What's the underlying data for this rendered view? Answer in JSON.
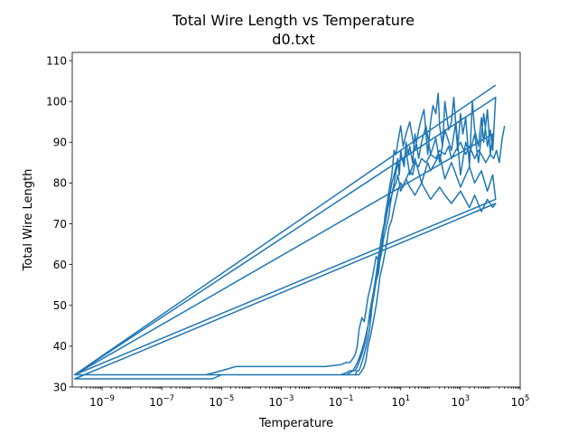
{
  "chart_data": {
    "type": "line",
    "title": "Total Wire Length vs Temperature",
    "subtitle": "d0.txt",
    "xlabel": "Temperature",
    "ylabel": "Total Wire Length",
    "xscale": "log",
    "xlim": [
      1e-10,
      100000
    ],
    "ylim": [
      30,
      112
    ],
    "xticks": [
      {
        "value": 1e-09,
        "base": "10",
        "exp": "−9"
      },
      {
        "value": 1e-07,
        "base": "10",
        "exp": "−7"
      },
      {
        "value": 1e-05,
        "base": "10",
        "exp": "−5"
      },
      {
        "value": 0.001,
        "base": "10",
        "exp": "−3"
      },
      {
        "value": 0.1,
        "base": "10",
        "exp": "−1"
      },
      {
        "value": 10,
        "base": "10",
        "exp": "1"
      },
      {
        "value": 1000,
        "base": "10",
        "exp": "3"
      },
      {
        "value": 100000,
        "base": "10",
        "exp": "5"
      }
    ],
    "yticks": [
      30,
      40,
      50,
      60,
      70,
      80,
      90,
      100,
      110
    ],
    "grid": false,
    "series": [
      {
        "color": "#1f77b4",
        "x": [
          15000,
          1.2e-10,
          3e-10,
          1e-09,
          1e-08,
          3e-08,
          1e-07,
          3e-07,
          1e-06,
          3e-06,
          1e-05,
          3e-05,
          0.0001,
          0.0003,
          0.001,
          0.003,
          0.01,
          0.03,
          0.1,
          0.15,
          0.2,
          0.25,
          0.3,
          0.35,
          0.4,
          0.5,
          0.6,
          0.7,
          0.8,
          1.0,
          1.2,
          1.5,
          1.8,
          2.2,
          2.6,
          3.0,
          3.5,
          4.0,
          4.5,
          5.0,
          5.5,
          6.0,
          7.0,
          8.0,
          9.0,
          10,
          12,
          15,
          20,
          25,
          30,
          40,
          50,
          60,
          70,
          80,
          100,
          120,
          150,
          180,
          200,
          250,
          300,
          400,
          500,
          600,
          800,
          1000,
          1200,
          1500,
          2000,
          2500,
          3000,
          4000,
          5000,
          6000,
          8000,
          10000,
          12000,
          1.2e-10,
          3e-10,
          1e-09,
          1e-08,
          1e-07,
          1e-06,
          1e-05,
          0.0001,
          0.001,
          0.01,
          0.05,
          0.1,
          0.15,
          0.2,
          0.25,
          0.3,
          0.35,
          0.4,
          0.45,
          0.5,
          0.55,
          0.6,
          0.7,
          0.8,
          0.9,
          1.0,
          1.1,
          1.3,
          1.5,
          1.8,
          2.0,
          2.3,
          2.6,
          3.0,
          3.5,
          4.0,
          4.5,
          5.0,
          6.0,
          7.0,
          8.0,
          9.0,
          10,
          11,
          13,
          15,
          18,
          20,
          25,
          30,
          40,
          50,
          70,
          100,
          150,
          200,
          300,
          500,
          700,
          1000,
          1500,
          2000,
          3000,
          4000,
          6000,
          8000,
          10000,
          12000,
          15000,
          1.2e-10,
          1e-09,
          1e-08,
          1e-07,
          1e-06,
          1e-05,
          0.0001,
          0.001,
          0.01,
          0.05,
          0.1,
          0.15,
          0.2,
          0.25,
          0.3,
          0.35,
          0.4,
          0.5,
          0.6,
          0.7,
          0.8,
          0.9,
          1.0,
          1.2,
          1.4,
          1.6,
          1.8,
          2.0,
          2.3,
          2.6,
          3.0,
          3.5,
          4.0,
          4.5,
          5.0,
          6.0,
          7.0,
          8.0,
          9.0,
          10,
          12,
          15,
          20,
          30,
          50,
          80,
          100,
          200,
          300,
          500,
          1000,
          2000,
          3000,
          5000,
          8000,
          12000,
          15000,
          1.2e-10,
          1e-09,
          1e-08,
          1e-07,
          1e-06,
          1e-05,
          0.0001,
          0.001,
          0.01,
          0.1,
          0.15,
          0.2,
          0.25,
          0.3,
          0.35,
          0.4,
          0.5,
          0.6,
          0.7,
          0.8,
          0.9,
          1.0,
          1.2,
          1.4,
          1.6,
          1.8,
          2.0,
          2.3,
          2.6,
          3.0,
          3.5,
          4.0,
          5.0,
          6.0,
          7.0,
          8.0,
          10,
          15,
          20,
          30,
          50,
          100,
          200,
          300,
          500,
          1000,
          2000,
          3000,
          5000,
          8000,
          12000,
          15000,
          1.2e-10,
          1e-09,
          1e-08,
          1e-07,
          3e-07,
          1e-06,
          3e-06,
          5e-06,
          1e-05,
          3e-05,
          0.0001,
          0.0003,
          0.001,
          0.003,
          0.01,
          0.03,
          0.06,
          0.1,
          0.15,
          0.2,
          0.25,
          0.3,
          0.35,
          0.4,
          0.5,
          0.6,
          0.7,
          0.8,
          1.0,
          1.2,
          1.5,
          1.8,
          2.0,
          2.5,
          3.0,
          3.5,
          4.0,
          5.0,
          6.0,
          7.0,
          8.0,
          10,
          12,
          15,
          20,
          25,
          30,
          40,
          50,
          70,
          100,
          150,
          200,
          300,
          400,
          500,
          700,
          1000,
          1500,
          2000,
          3000,
          4000,
          5000,
          7000,
          10000,
          13000,
          16000,
          20000,
          25000,
          30000
        ],
        "y": [
          104,
          33,
          33,
          33,
          33,
          33,
          33,
          33,
          33,
          33,
          34,
          35,
          35,
          35,
          35,
          35,
          35,
          35,
          35.5,
          36,
          36,
          37,
          38,
          40,
          44,
          47,
          46,
          49,
          52,
          55,
          58,
          62,
          61,
          64,
          68,
          72,
          75,
          78,
          80,
          82,
          85,
          88,
          87,
          90,
          92,
          94,
          89,
          92,
          95,
          91,
          88,
          93,
          96,
          98,
          92,
          87,
          95,
          99,
          97,
          102,
          94,
          89,
          100,
          93,
          95,
          101,
          88,
          97,
          92,
          96,
          84,
          100,
          93,
          89,
          96,
          90,
          98,
          87,
          92,
          33,
          33,
          33,
          33,
          33,
          33,
          33,
          33,
          33,
          33,
          33,
          33,
          33,
          33,
          33,
          33,
          34,
          34,
          35,
          36,
          37,
          38,
          40,
          42,
          44,
          47,
          50,
          53,
          56,
          58,
          61,
          63,
          66,
          68,
          70,
          72,
          75,
          77,
          80,
          83,
          85,
          82,
          88,
          86,
          84,
          90,
          87,
          89,
          85,
          92,
          86,
          90,
          94,
          87,
          91,
          85,
          93,
          88,
          95,
          82,
          90,
          87,
          92,
          85,
          97,
          89,
          93,
          88,
          101,
          33,
          33,
          33,
          33,
          33,
          33,
          33,
          33,
          33,
          33,
          33,
          33.5,
          34,
          34,
          35,
          36,
          37,
          39,
          41,
          43,
          45,
          48,
          50,
          52,
          55,
          57,
          60,
          62,
          65,
          68,
          70,
          73,
          76,
          78,
          80,
          82,
          84,
          86,
          83,
          87,
          85,
          88,
          82,
          86,
          80,
          85,
          83,
          87,
          81,
          85,
          79,
          84,
          80,
          83,
          78,
          82,
          76,
          33,
          33,
          33,
          33,
          33,
          33,
          33,
          33,
          33,
          33,
          33,
          33.5,
          34,
          34,
          35,
          36,
          38,
          40,
          42,
          45,
          47,
          50,
          53,
          56,
          59,
          62,
          64,
          67,
          69,
          71,
          73,
          75,
          77,
          79,
          80,
          82,
          78,
          81,
          79,
          77,
          80,
          76,
          79,
          77,
          75,
          78,
          74,
          77,
          73,
          76,
          74,
          75,
          32,
          32,
          32,
          32,
          32,
          32,
          32,
          32,
          33,
          33,
          33,
          33,
          33,
          33,
          33,
          33,
          33,
          33,
          33,
          33,
          33,
          33,
          33,
          33,
          34,
          35,
          37,
          40,
          43,
          46,
          50,
          54,
          57,
          60,
          63,
          66,
          69,
          71,
          74,
          76,
          78,
          80,
          79,
          81,
          83,
          82,
          85,
          84,
          86,
          85,
          87,
          86,
          88,
          87,
          89,
          86,
          88,
          90,
          87,
          89,
          86,
          88,
          87,
          85,
          87,
          86,
          88,
          85,
          91,
          94
        ]
      }
    ]
  }
}
